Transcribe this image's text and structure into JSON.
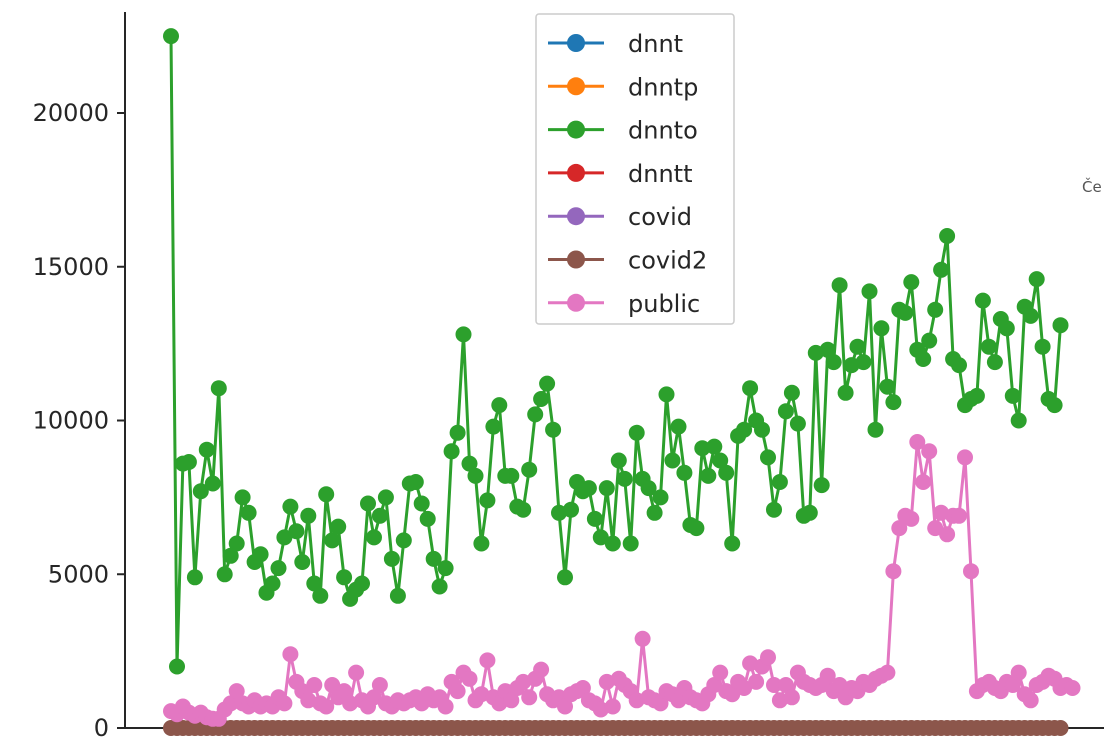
{
  "fragment_text": "Če",
  "chart_data": {
    "type": "line",
    "title": "",
    "xlabel": "",
    "ylabel": "",
    "ylim": [
      0,
      23000
    ],
    "yticks": [
      0,
      5000,
      10000,
      15000,
      20000
    ],
    "grid": false,
    "legend_position": "top-center",
    "markers": "circle",
    "series": [
      {
        "name": "dnnt",
        "color": "#1f77b4",
        "values": []
      },
      {
        "name": "dnntp",
        "color": "#ff7f0e",
        "values": []
      },
      {
        "name": "dnnto",
        "color": "#2ca02c",
        "values": [
          22500,
          2000,
          8600,
          8650,
          4900,
          7700,
          9050,
          7950,
          11050,
          5000,
          5600,
          6000,
          7500,
          7000,
          5400,
          5650,
          4400,
          4700,
          5200,
          6200,
          7200,
          6400,
          5400,
          6900,
          4700,
          4300,
          7600,
          6100,
          6550,
          4900,
          4200,
          4500,
          4700,
          7300,
          6200,
          6900,
          7500,
          5500,
          4300,
          6100,
          7950,
          8000,
          7300,
          6800,
          5500,
          4600,
          5200,
          9000,
          9600,
          12800,
          8600,
          8200,
          6000,
          7400,
          9800,
          10500,
          8200,
          8200,
          7200,
          7100,
          8400,
          10200,
          10700,
          11200,
          9700,
          7000,
          4900,
          7100,
          8000,
          7700,
          7800,
          6800,
          6200,
          7800,
          6000,
          8700,
          8100,
          6000,
          9600,
          8100,
          7800,
          7000,
          7500,
          10850,
          8700,
          9800,
          8300,
          6600,
          6500,
          9100,
          8200,
          9150,
          8700,
          8300,
          6000,
          9500,
          9700,
          11050,
          10000,
          9700,
          8800,
          7100,
          8000,
          10300,
          10900,
          9900,
          6900,
          7000,
          12200,
          7900,
          12300,
          11900,
          14400,
          10900,
          11800,
          12400,
          11900,
          14200,
          9700,
          13000,
          11100,
          10600,
          13600,
          13500,
          14500,
          12300,
          12000,
          12600,
          13600,
          14900,
          16000,
          12000,
          11800,
          10500,
          10700,
          10800,
          13900,
          12400,
          11900,
          13300,
          13000,
          10800,
          10000,
          13700,
          13400,
          14600,
          12400,
          10700,
          10500,
          13100
        ]
      },
      {
        "name": "dnntt",
        "color": "#d62728",
        "values": []
      },
      {
        "name": "covid",
        "color": "#9467bd",
        "values": []
      },
      {
        "name": "covid2",
        "color": "#8c564b",
        "values": [
          0,
          0,
          0,
          0,
          0,
          0,
          0,
          0,
          0,
          0,
          0,
          0,
          0,
          0,
          0,
          0,
          0,
          0,
          0,
          0,
          0,
          0,
          0,
          0,
          0,
          0,
          0,
          0,
          0,
          0,
          0,
          0,
          0,
          0,
          0,
          0,
          0,
          0,
          0,
          0,
          0,
          0,
          0,
          0,
          0,
          0,
          0,
          0,
          0,
          0,
          0,
          0,
          0,
          0,
          0,
          0,
          0,
          0,
          0,
          0,
          0,
          0,
          0,
          0,
          0,
          0,
          0,
          0,
          0,
          0,
          0,
          0,
          0,
          0,
          0,
          0,
          0,
          0,
          0,
          0,
          0,
          0,
          0,
          0,
          0,
          0,
          0,
          0,
          0,
          0,
          0,
          0,
          0,
          0,
          0,
          0,
          0,
          0,
          0,
          0,
          0,
          0,
          0,
          0,
          0,
          0,
          0,
          0,
          0,
          0,
          0,
          0,
          0,
          0,
          0,
          0,
          0,
          0,
          0,
          0,
          0,
          0,
          0,
          0,
          0,
          0,
          0,
          0,
          0,
          0,
          0,
          0,
          0,
          0,
          0,
          0,
          0,
          0,
          0,
          0,
          0,
          0,
          0,
          0,
          0,
          0,
          0,
          0,
          0,
          0
        ]
      },
      {
        "name": "public",
        "color": "#e377c2",
        "values": [
          550,
          450,
          700,
          500,
          400,
          500,
          350,
          300,
          300,
          600,
          800,
          1200,
          800,
          700,
          900,
          700,
          800,
          700,
          1000,
          800,
          2400,
          1500,
          1200,
          900,
          1400,
          800,
          700,
          1400,
          1000,
          1200,
          800,
          1800,
          900,
          700,
          1000,
          1400,
          800,
          700,
          900,
          800,
          900,
          1000,
          800,
          1100,
          900,
          1000,
          700,
          1500,
          1200,
          1800,
          1600,
          900,
          1100,
          2200,
          1000,
          800,
          1200,
          900,
          1300,
          1500,
          1000,
          1600,
          1900,
          1100,
          900,
          1000,
          700,
          1100,
          1200,
          1300,
          900,
          800,
          600,
          1500,
          700,
          1600,
          1400,
          1200,
          900,
          2900,
          1000,
          900,
          800,
          1200,
          1100,
          900,
          1300,
          1000,
          900,
          800,
          1100,
          1400,
          1800,
          1200,
          1100,
          1500,
          1300,
          2100,
          1500,
          2000,
          2300,
          1400,
          900,
          1400,
          1000,
          1800,
          1500,
          1400,
          1300,
          1400,
          1700,
          1200,
          1400,
          1000,
          1300,
          1200,
          1500,
          1400,
          1600,
          1700,
          1800,
          5100,
          6500,
          6900,
          6800,
          9300,
          8000,
          9000,
          6500,
          7000,
          6300,
          6900,
          6900,
          8800,
          5100,
          1200,
          1400,
          1500,
          1300,
          1200,
          1500,
          1400,
          1800,
          1100,
          900,
          1400,
          1500,
          1700,
          1600,
          1300,
          1400,
          1300
        ]
      }
    ]
  }
}
